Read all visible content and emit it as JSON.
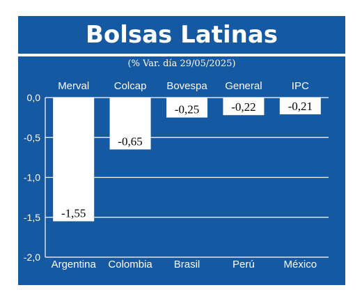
{
  "header": {
    "title": "Bolsas Latinas",
    "subtitle": "(% Var. día 29/05/2025)"
  },
  "colors": {
    "background": "#1559a3",
    "bar": "#ffffff",
    "text": "#ffffff",
    "label_text": "#000000"
  },
  "chart_data": {
    "type": "bar",
    "categories": [
      "Argentina",
      "Colombia",
      "Brasil",
      "Perú",
      "México"
    ],
    "index_names": [
      "Merval",
      "Colcap",
      "Bovespa",
      "General",
      "IPC"
    ],
    "values": [
      -1.55,
      -0.65,
      -0.25,
      -0.22,
      -0.21
    ],
    "value_labels": [
      "-1,55",
      "-0,65",
      "-0,25",
      "-0,22",
      "-0,21"
    ],
    "ylim": [
      -2.0,
      0.0
    ],
    "yticks": [
      0.0,
      -0.5,
      -1.0,
      -1.5,
      -2.0
    ],
    "ytick_labels": [
      "0,0",
      "-0,5",
      "-1,0",
      "-1,5",
      "-2,0"
    ],
    "grid": true
  }
}
